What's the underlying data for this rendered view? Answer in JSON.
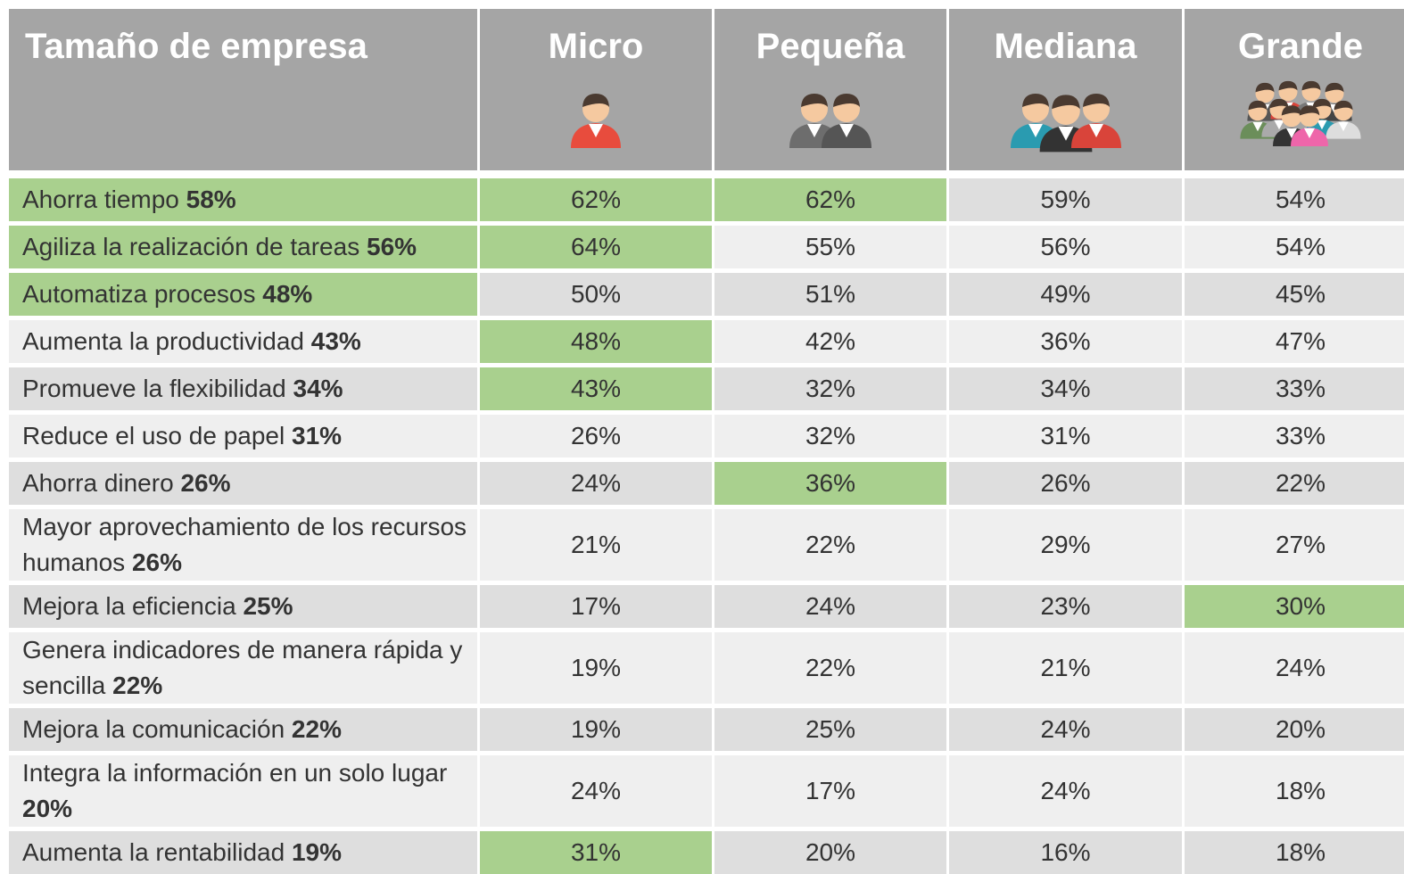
{
  "table": {
    "headers": [
      "Tamaño de empresa",
      "Micro",
      "Pequeña",
      "Mediana",
      "Grande"
    ],
    "rows": [
      {
        "label": "Ahorra tiempo",
        "total": "58%",
        "cells": [
          "62%",
          "62%",
          "59%",
          "54%"
        ],
        "highlight": [
          0,
          1,
          2
        ]
      },
      {
        "label": "Agiliza la realización de tareas",
        "total": "56%",
        "cells": [
          "64%",
          "55%",
          "56%",
          "54%"
        ],
        "highlight": [
          0,
          1
        ]
      },
      {
        "label": "Automatiza procesos",
        "total": "48%",
        "cells": [
          "50%",
          "51%",
          "49%",
          "45%"
        ],
        "highlight": [
          0
        ]
      },
      {
        "label": "Aumenta la productividad",
        "total": "43%",
        "cells": [
          "48%",
          "42%",
          "36%",
          "47%"
        ],
        "highlight": [
          1
        ]
      },
      {
        "label": "Promueve la flexibilidad",
        "total": "34%",
        "cells": [
          "43%",
          "32%",
          "34%",
          "33%"
        ],
        "highlight": [
          1
        ]
      },
      {
        "label": "Reduce el uso de papel",
        "total": "31%",
        "cells": [
          "26%",
          "32%",
          "31%",
          "33%"
        ],
        "highlight": []
      },
      {
        "label": "Ahorra dinero",
        "total": "26%",
        "cells": [
          "24%",
          "36%",
          "26%",
          "22%"
        ],
        "highlight": [
          2
        ]
      },
      {
        "label": "Mayor aprovechamiento de los recursos humanos",
        "total": "26%",
        "cells": [
          "21%",
          "22%",
          "29%",
          "27%"
        ],
        "highlight": []
      },
      {
        "label": "Mejora la eficiencia",
        "total": "25%",
        "cells": [
          "17%",
          "24%",
          "23%",
          "30%"
        ],
        "highlight": [
          4
        ]
      },
      {
        "label": "Genera indicadores de manera rápida y sencilla",
        "total": "22%",
        "cells": [
          "19%",
          "22%",
          "21%",
          "24%"
        ],
        "highlight": []
      },
      {
        "label": "Mejora la comunicación",
        "total": "22%",
        "cells": [
          "19%",
          "25%",
          "24%",
          "20%"
        ],
        "highlight": []
      },
      {
        "label": "Integra la información en un solo lugar",
        "total": "20%",
        "cells": [
          "24%",
          "17%",
          "24%",
          "18%"
        ],
        "highlight": []
      },
      {
        "label": "Aumenta la rentabilidad",
        "total": "19%",
        "cells": [
          "31%",
          "20%",
          "16%",
          "18%"
        ],
        "highlight": [
          1
        ]
      }
    ],
    "highlight_color": "#a9d08e"
  }
}
